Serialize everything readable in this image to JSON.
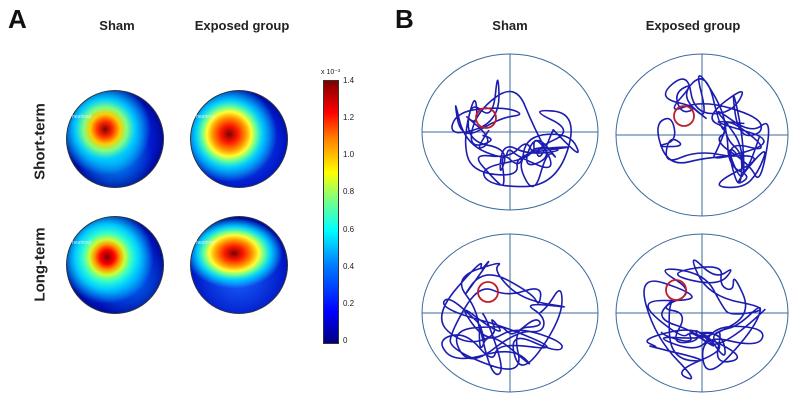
{
  "panel_a": {
    "letter": "A",
    "col_sham": "Sham",
    "col_exposed": "Exposed group",
    "row_short": "Short-term",
    "row_long": "Long-term",
    "heatmap_tag": "heatmap"
  },
  "colorbar": {
    "multiplier": "x 10⁻³",
    "ticks": [
      "1.4",
      "1.2",
      "1.0",
      "0.8",
      "0.6",
      "0.4",
      "0.2",
      "0"
    ]
  },
  "panel_b": {
    "letter": "B",
    "col_sham": "Sham",
    "col_exposed": "Exposed group"
  },
  "colors": {
    "track": "#1c1cb0",
    "target": "#c21d2a",
    "arena_line": "#3a6a9a"
  }
}
